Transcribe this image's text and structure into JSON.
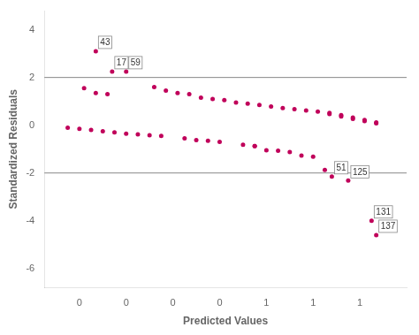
{
  "chart_data": {
    "type": "scatter",
    "xlabel": "Predicted Values",
    "ylabel": "Standardized Residuals",
    "xlim": [
      -0.35,
      1.2
    ],
    "ylim": [
      -6.8,
      4.8
    ],
    "xticks": [
      {
        "value": -0.2,
        "label": "0"
      },
      {
        "value": 0.0,
        "label": "0"
      },
      {
        "value": 0.2,
        "label": "0"
      },
      {
        "value": 0.4,
        "label": "0"
      },
      {
        "value": 0.6,
        "label": "1"
      },
      {
        "value": 0.8,
        "label": "1"
      },
      {
        "value": 1.0,
        "label": "1"
      }
    ],
    "yticks": [
      -6,
      -4,
      -2,
      0,
      2,
      4
    ],
    "grid": false,
    "color": "#C0005A",
    "x": [
      -0.18,
      -0.13,
      -0.08,
      0.12,
      0.17,
      0.22,
      0.27,
      0.32,
      0.37,
      0.42,
      0.47,
      0.52,
      0.57,
      0.62,
      0.67,
      0.72,
      0.77,
      0.82,
      0.87,
      0.87,
      0.92,
      0.92,
      0.97,
      0.97,
      1.02,
      1.02,
      1.07,
      1.07,
      -0.25,
      -0.2,
      -0.15,
      -0.1,
      -0.05,
      0.0,
      0.05,
      0.1,
      0.15,
      0.25,
      0.3,
      0.35,
      0.4,
      0.5,
      0.55,
      0.55,
      0.6,
      0.65,
      0.7,
      0.75,
      0.8,
      0.85,
      -0.13,
      -0.06,
      0.0,
      0.88,
      0.95,
      1.05,
      1.07
    ],
    "values": [
      1.55,
      1.35,
      1.3,
      1.6,
      1.45,
      1.35,
      1.3,
      1.15,
      1.1,
      1.05,
      0.95,
      0.9,
      0.85,
      0.78,
      0.72,
      0.67,
      0.62,
      0.57,
      0.52,
      0.47,
      0.42,
      0.37,
      0.32,
      0.27,
      0.22,
      0.17,
      0.12,
      0.08,
      -0.1,
      -0.15,
      -0.2,
      -0.25,
      -0.3,
      -0.35,
      -0.38,
      -0.42,
      -0.45,
      -0.55,
      -0.62,
      -0.65,
      -0.7,
      -0.82,
      -0.87,
      -0.87,
      -1.05,
      -1.07,
      -1.12,
      -1.27,
      -1.32,
      -1.87,
      3.1,
      2.25,
      2.25,
      -2.15,
      -2.32,
      -4.0,
      -4.6
    ],
    "hlines": [
      -2.0,
      2.0
    ],
    "annotations": [
      {
        "x": -0.13,
        "y": 3.1,
        "text": "43"
      },
      {
        "x": -0.06,
        "y": 2.25,
        "text": "17"
      },
      {
        "x": 0.0,
        "y": 2.25,
        "text": "59"
      },
      {
        "x": 0.88,
        "y": -2.15,
        "text": "51"
      },
      {
        "x": 0.95,
        "y": -2.32,
        "text": "125"
      },
      {
        "x": 1.05,
        "y": -4.0,
        "text": "131"
      },
      {
        "x": 1.07,
        "y": -4.6,
        "text": "137"
      }
    ]
  }
}
